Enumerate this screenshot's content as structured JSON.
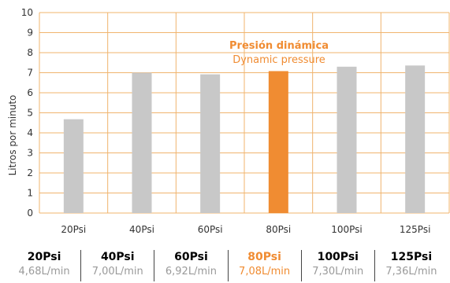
{
  "colors": {
    "bar": "#c8c8c8",
    "highlight": "#f08c32",
    "grid": "#f0b46e",
    "text": "#333333",
    "muted": "#9a9a9a"
  },
  "chart_data": {
    "type": "bar",
    "categories": [
      "20Psi",
      "40Psi",
      "60Psi",
      "80Psi",
      "100Psi",
      "125Psi"
    ],
    "values": [
      4.68,
      7.0,
      6.92,
      7.08,
      7.3,
      7.36
    ],
    "highlight_index": 3,
    "ylabel": "Litros por minuto",
    "ylim": [
      0,
      10
    ],
    "yticks": [
      0,
      1,
      2,
      3,
      4,
      5,
      6,
      7,
      8,
      9,
      10
    ],
    "grid": true,
    "annotation": {
      "line1": "Presión dinámica",
      "line2": "Dynamic pressure"
    }
  },
  "table": {
    "columns": [
      {
        "label": "20Psi",
        "value": "4,68L/min"
      },
      {
        "label": "40Psi",
        "value": "7,00L/min"
      },
      {
        "label": "60Psi",
        "value": "6,92L/min"
      },
      {
        "label": "80Psi",
        "value": "7,08L/min",
        "highlight": true
      },
      {
        "label": "100Psi",
        "value": "7,30L/min"
      },
      {
        "label": "125Psi",
        "value": "7,36L/min"
      }
    ]
  }
}
